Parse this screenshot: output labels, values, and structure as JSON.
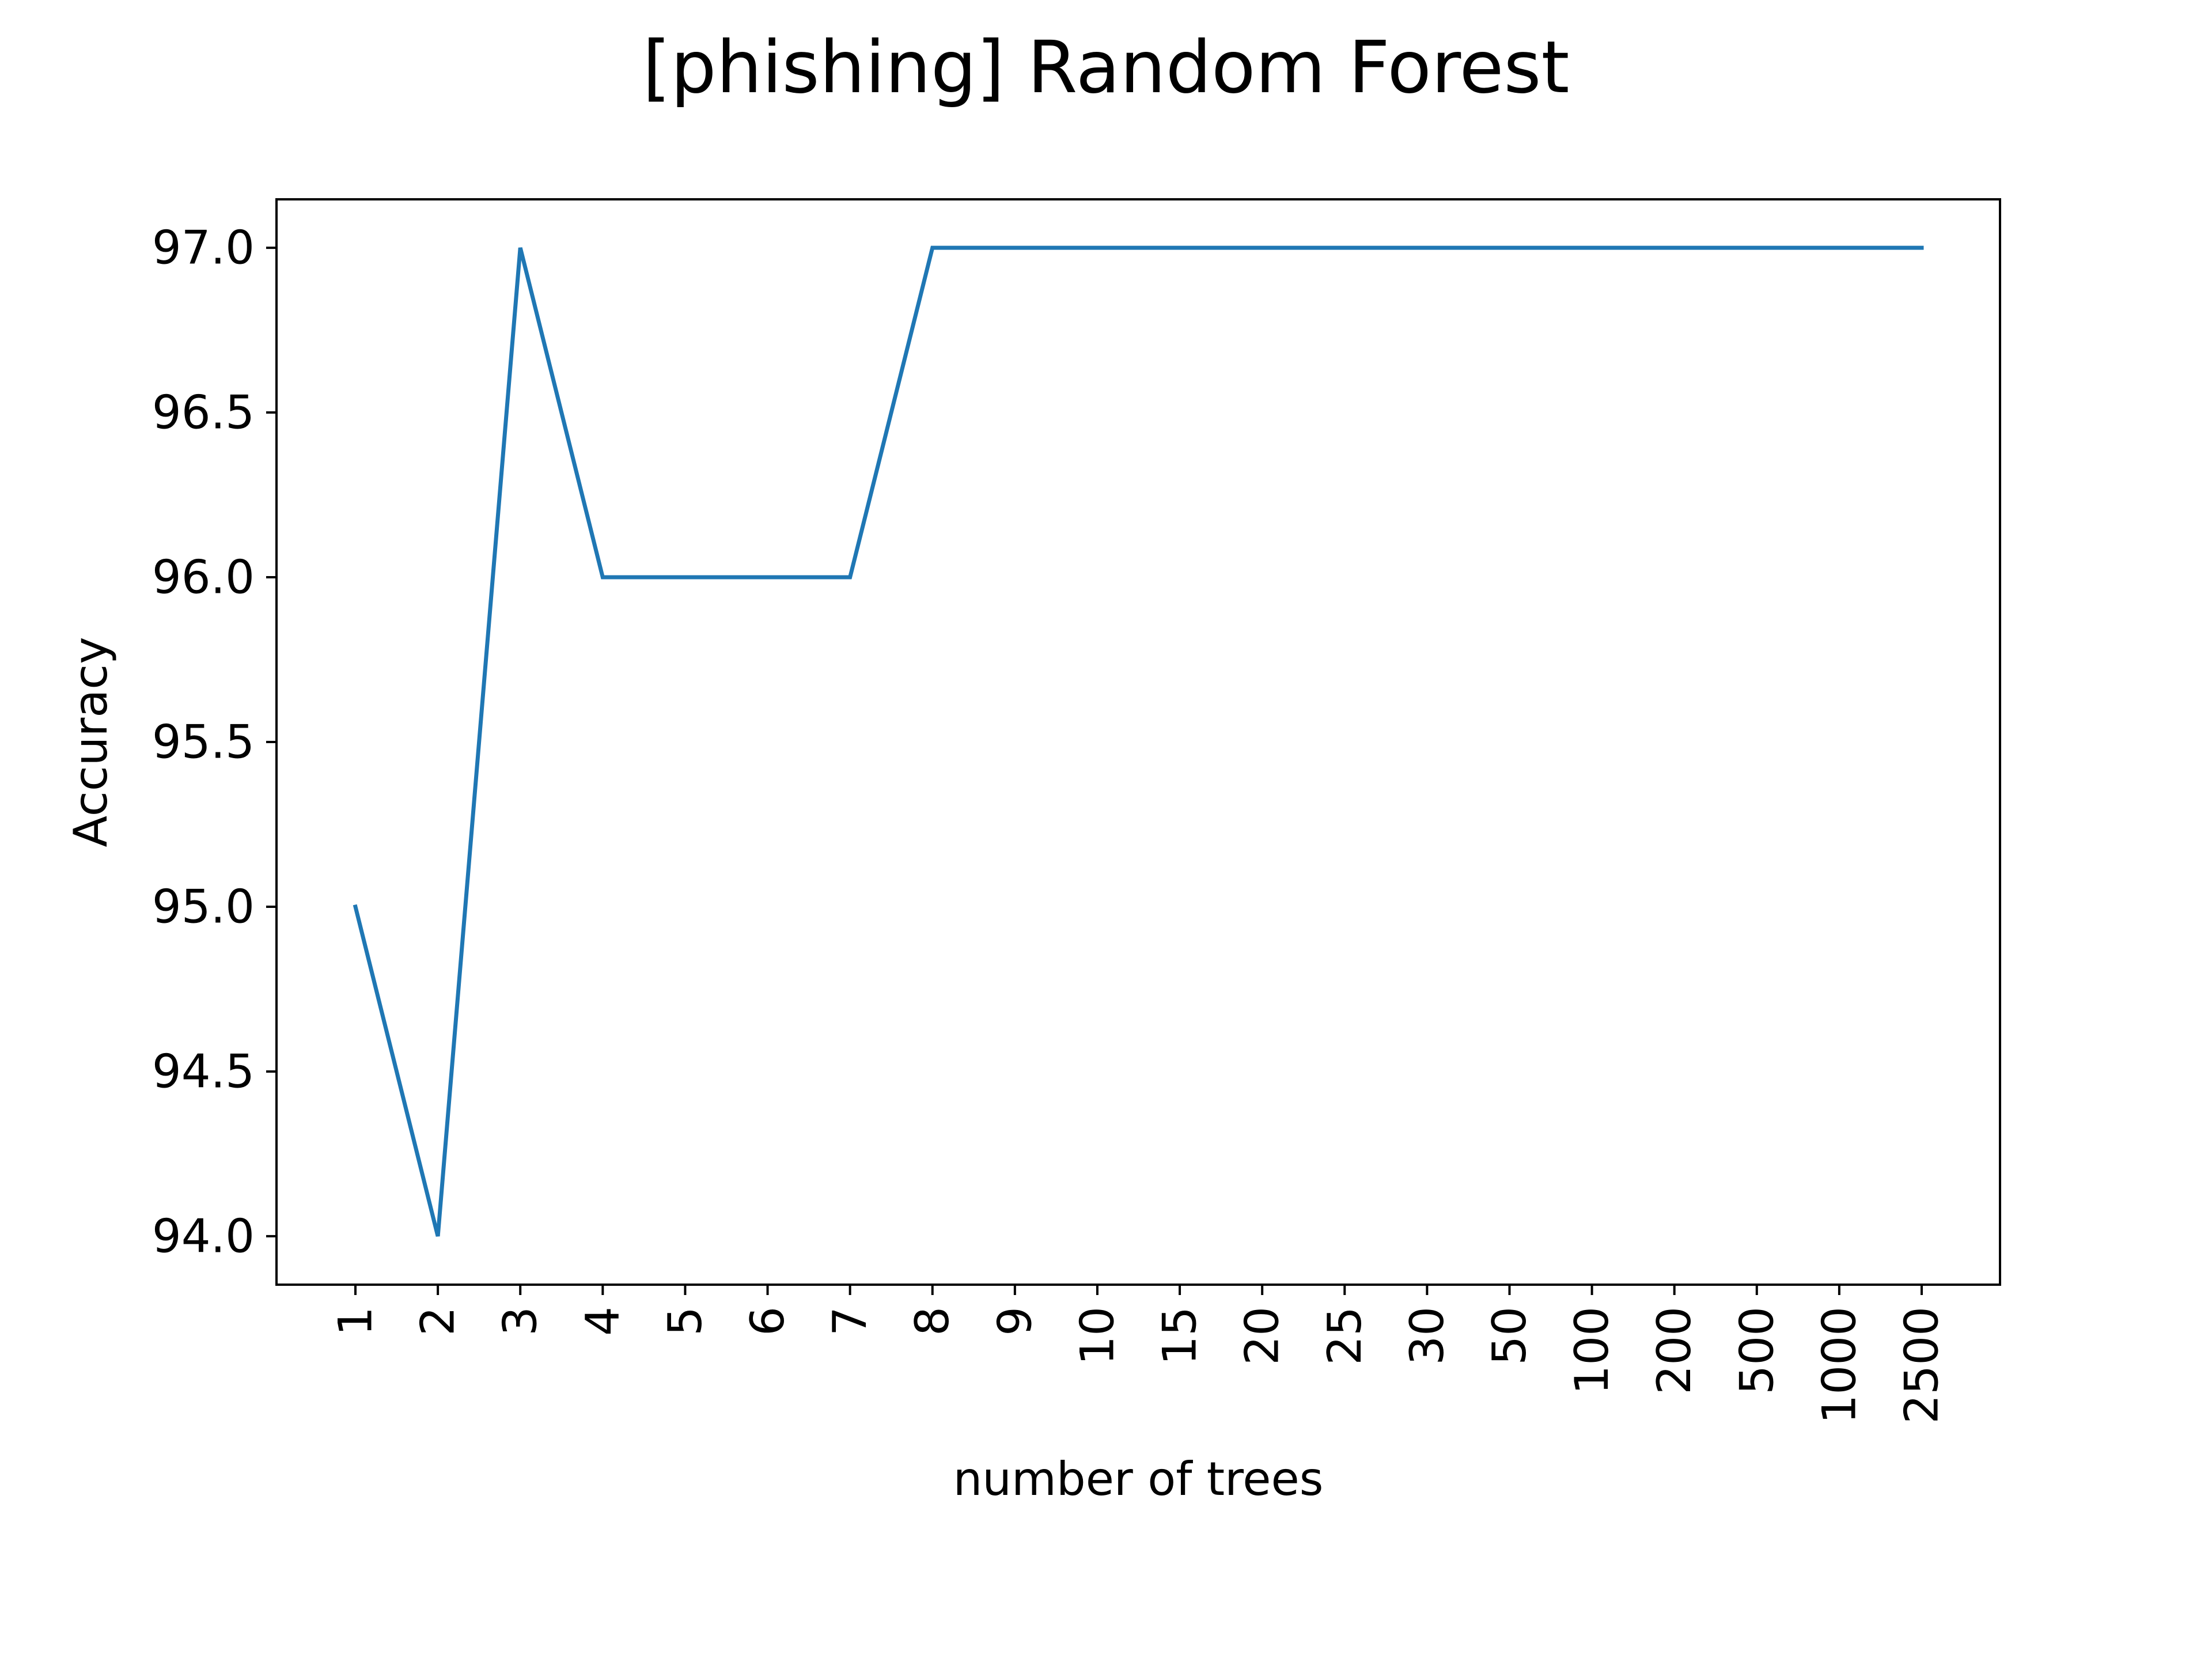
{
  "chart_data": {
    "type": "line",
    "title": "[phishing] Random Forest",
    "xlabel": "number of trees",
    "ylabel": "Accuracy",
    "categories": [
      "1",
      "2",
      "3",
      "4",
      "5",
      "6",
      "7",
      "8",
      "9",
      "10",
      "15",
      "20",
      "25",
      "30",
      "50",
      "100",
      "200",
      "500",
      "1000",
      "2500"
    ],
    "series": [
      {
        "name": "Accuracy",
        "color": "#1f77b4",
        "values": [
          95.0,
          94.0,
          97.0,
          96.0,
          96.0,
          96.0,
          96.0,
          97.0,
          97.0,
          97.0,
          97.0,
          97.0,
          97.0,
          97.0,
          97.0,
          97.0,
          97.0,
          97.0,
          97.0,
          97.0
        ]
      }
    ],
    "ylim": [
      93.853,
      97.147
    ],
    "yticks": [
      94.0,
      94.5,
      95.0,
      95.5,
      96.0,
      96.5,
      97.0
    ],
    "ytick_labels": [
      "94.0",
      "94.5",
      "95.0",
      "95.5",
      "96.0",
      "96.5",
      "97.0"
    ],
    "grid": false,
    "legend": "none"
  }
}
